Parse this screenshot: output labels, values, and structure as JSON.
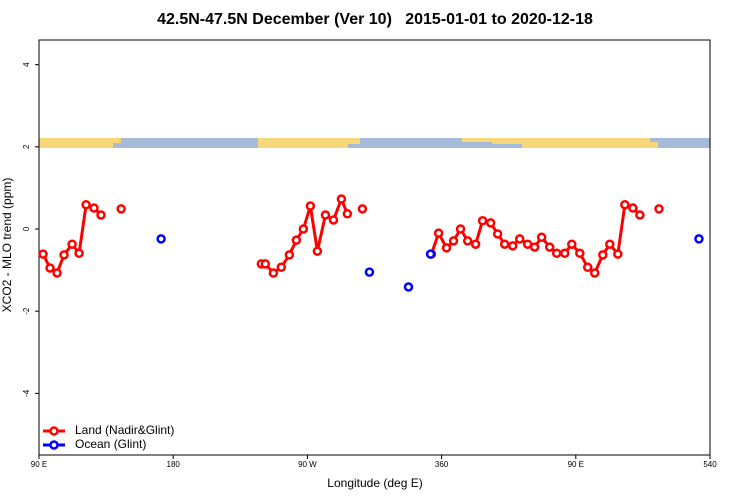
{
  "chart_data": {
    "type": "line",
    "title": "42.5N-47.5N December (Ver 10)   2015-01-01 to 2020-12-18",
    "x_label": "Longitude (deg E)",
    "y_label": "XCO2 - MLO trend (ppm)",
    "xlim": [
      90,
      540
    ],
    "ylim": [
      -5.5,
      4.6
    ],
    "xticks": [
      {
        "value": 90,
        "label": "90 E"
      },
      180,
      {
        "value": 270,
        "label": "90 W"
      },
      360,
      {
        "value": 450,
        "label": "90 E"
      },
      540
    ],
    "yticks": [
      -4,
      -2,
      0,
      2,
      4
    ],
    "legend": "bottom-left",
    "series": [
      {
        "name": "Land (Nadir&Glint)",
        "color": "#ff0000",
        "linestyle": "solid",
        "x": [
          92.7,
          97.4,
          102.1,
          106.8,
          112.2,
          116.9,
          121.6,
          126.9,
          131.6,
          null,
          145.1,
          null,
          239.1,
          241.8,
          247.2,
          252.5,
          257.9,
          262.6,
          267.3,
          272.0,
          276.7,
          282.1,
          287.5,
          292.8,
          296.8,
          null,
          306.9,
          null,
          353.2,
          358.0,
          363.3,
          368.0,
          372.7,
          377.5,
          382.8,
          387.5,
          392.9,
          397.6,
          402.3,
          407.7,
          412.4,
          417.7,
          422.4,
          427.1,
          432.5,
          437.2,
          442.6,
          447.3,
          452.7,
          458.0,
          462.7,
          468.1,
          472.8,
          478.2,
          482.9,
          488.3,
          493.0,
          null,
          505.8
        ],
        "values": [
          -0.61,
          -0.95,
          -1.07,
          -0.63,
          -0.37,
          -0.59,
          0.59,
          0.51,
          0.34,
          null,
          0.49,
          null,
          -0.85,
          -0.85,
          -1.07,
          -0.93,
          -0.63,
          -0.27,
          0.0,
          0.56,
          -0.54,
          0.34,
          0.22,
          0.73,
          0.37,
          null,
          0.49,
          null,
          -0.61,
          -0.1,
          -0.46,
          -0.29,
          0.0,
          -0.29,
          -0.37,
          0.2,
          0.15,
          -0.12,
          -0.37,
          -0.41,
          -0.24,
          -0.37,
          -0.44,
          -0.2,
          -0.44,
          -0.59,
          -0.59,
          -0.37,
          -0.59,
          -0.93,
          -1.07,
          -0.63,
          -0.37,
          -0.61,
          0.59,
          0.51,
          0.34,
          null,
          0.49
        ]
      },
      {
        "name": "Ocean (Glint)",
        "color": "#0000ff",
        "linestyle": "none",
        "x": [
          171.9,
          311.6,
          337.8,
          352.6,
          532.6
        ],
        "values": [
          -0.24,
          -1.05,
          -1.41,
          -0.61,
          -0.24
        ]
      }
    ]
  }
}
